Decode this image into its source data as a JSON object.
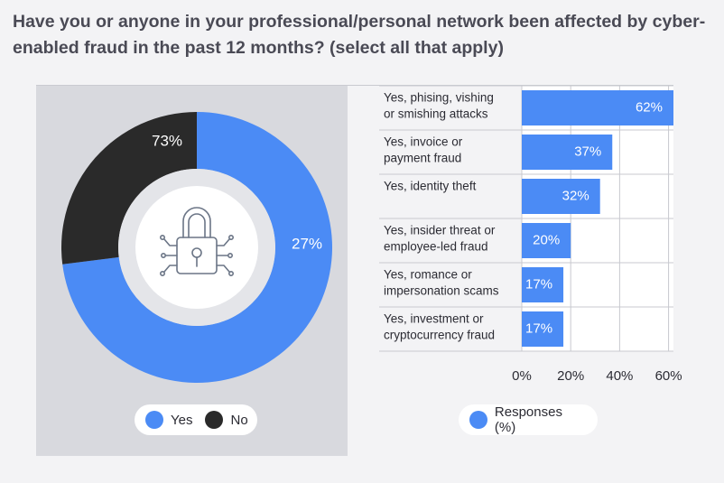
{
  "title": "Have you or anyone in your professional/personal network been affected by cyber-enabled fraud in the past 12 months? (select all that apply)",
  "colors": {
    "blue": "#4b8bf5",
    "dark": "#2a2a2a",
    "panel": "#d8d9de",
    "grid": "#c8c9cf"
  },
  "icon": "padlock-circuit-icon",
  "chart_data": [
    {
      "type": "pie",
      "style": "donut",
      "categories": [
        "Yes",
        "No"
      ],
      "values": [
        73,
        27
      ],
      "value_labels": [
        "73%",
        "27%"
      ],
      "colors": [
        "#4b8bf5",
        "#2a2a2a"
      ],
      "legend": [
        {
          "label": "Yes",
          "color": "#4b8bf5"
        },
        {
          "label": "No",
          "color": "#2a2a2a"
        }
      ],
      "legend_position": "bottom"
    },
    {
      "type": "bar",
      "orientation": "horizontal",
      "categories": [
        [
          "Yes, phising, vishing",
          "or smishing attacks"
        ],
        [
          "Yes, invoice or",
          "payment fraud"
        ],
        [
          "Yes, identity theft"
        ],
        [
          "Yes, insider threat or",
          "employee-led fraud"
        ],
        [
          "Yes, romance or",
          "impersonation scams"
        ],
        [
          "Yes, investment or",
          "cryptocurrency fraud"
        ]
      ],
      "series": [
        {
          "name": "Responses (%)",
          "values": [
            62,
            37,
            32,
            20,
            17,
            17
          ],
          "value_labels": [
            "62%",
            "37%",
            "32%",
            "20%",
            "17%",
            "17%"
          ]
        }
      ],
      "xlim": [
        0,
        62
      ],
      "xticks": [
        0,
        20,
        40,
        60
      ],
      "xtick_labels": [
        "0%",
        "20%",
        "40%",
        "60%"
      ],
      "grid": true,
      "legend_position": "bottom"
    }
  ]
}
